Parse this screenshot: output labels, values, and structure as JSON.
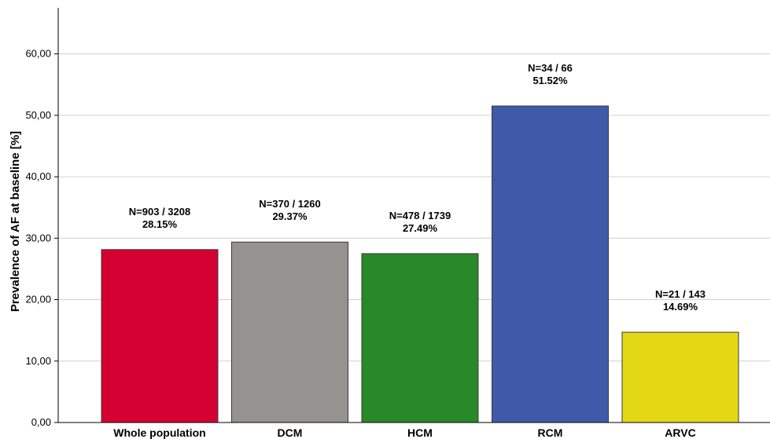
{
  "chart_data": {
    "type": "bar",
    "ylabel": "Prevalence of AF at baseline [%]",
    "ylim": [
      0,
      66
    ],
    "ytick_values": [
      0,
      10,
      20,
      30,
      40,
      50,
      60
    ],
    "ytick_labels": [
      "0,00",
      "10,00",
      "20,00",
      "30,00",
      "40,00",
      "50,00",
      "60,00"
    ],
    "grid": true,
    "categories": [
      "Whole population",
      "DCM",
      "HCM",
      "RCM",
      "ARVC"
    ],
    "values": [
      28.15,
      29.37,
      27.49,
      51.52,
      14.69
    ],
    "counts": [
      "N=903 / 3208",
      "N=370 / 1260",
      "N=478 / 1739",
      "N=34 / 66",
      "N=21 / 143"
    ],
    "percent_labels": [
      "28.15%",
      "29.37%",
      "27.49%",
      "51.52%",
      "14.69%"
    ],
    "colors": [
      "#d50032",
      "#959290",
      "#28882a",
      "#3f5aa8",
      "#e3d813"
    ]
  }
}
